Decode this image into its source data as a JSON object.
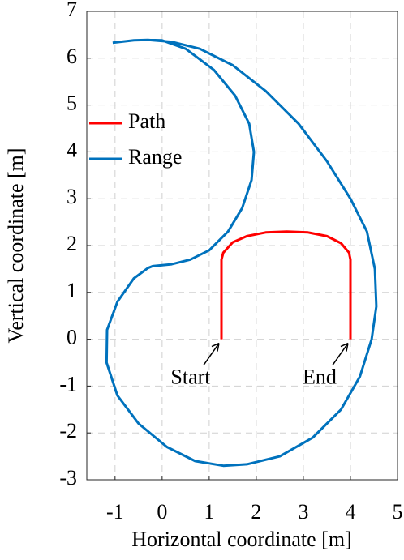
{
  "chart_data": {
    "type": "line",
    "xlabel": "Horizontal coordinate [m]",
    "ylabel": "Vertical coordinate [m]",
    "xlim": [
      -1.6,
      5
    ],
    "ylim": [
      -3,
      7
    ],
    "xticks": [
      -1,
      0,
      1,
      2,
      3,
      4,
      5
    ],
    "yticks": [
      -3,
      -2,
      -1,
      0,
      1,
      2,
      3,
      4,
      5,
      6,
      7
    ],
    "grid": true,
    "legend": "upper left",
    "series": [
      {
        "name": "Path",
        "color": "#ff0000",
        "x": [
          1.26,
          1.26,
          1.3,
          1.5,
          1.8,
          2.2,
          2.65,
          3.1,
          3.5,
          3.8,
          3.97,
          4,
          4
        ],
        "values": [
          0,
          1.7,
          1.85,
          2.07,
          2.2,
          2.28,
          2.3,
          2.28,
          2.2,
          2.05,
          1.85,
          1.7,
          0
        ]
      },
      {
        "name": "Range",
        "color": "#0072bd",
        "x": [
          -1.05,
          -0.6,
          -0.3,
          0.2,
          0.8,
          1.5,
          2.2,
          2.9,
          3.5,
          4.0,
          4.35,
          4.52,
          4.55,
          4.45,
          4.2,
          3.8,
          3.2,
          2.5,
          1.8,
          1.3,
          0.7,
          0.1,
          -0.5,
          -0.95,
          -1.18,
          -1.17,
          -0.95,
          -0.6,
          -0.3,
          -0.2,
          0.2,
          0.6,
          1.0,
          1.4,
          1.7,
          1.9,
          1.95,
          1.85,
          1.55,
          1.1,
          0.5,
          0,
          -0.3
        ],
        "values": [
          6.33,
          6.38,
          6.39,
          6.35,
          6.2,
          5.85,
          5.3,
          4.6,
          3.8,
          3.0,
          2.3,
          1.5,
          0.7,
          0.0,
          -0.8,
          -1.5,
          -2.1,
          -2.5,
          -2.67,
          -2.7,
          -2.6,
          -2.3,
          -1.8,
          -1.2,
          -0.5,
          0.2,
          0.8,
          1.3,
          1.52,
          1.56,
          1.6,
          1.7,
          1.9,
          2.3,
          2.8,
          3.4,
          4.0,
          4.6,
          5.2,
          5.75,
          6.2,
          6.38,
          6.39
        ]
      }
    ],
    "annotations": [
      "Start",
      "End"
    ]
  }
}
